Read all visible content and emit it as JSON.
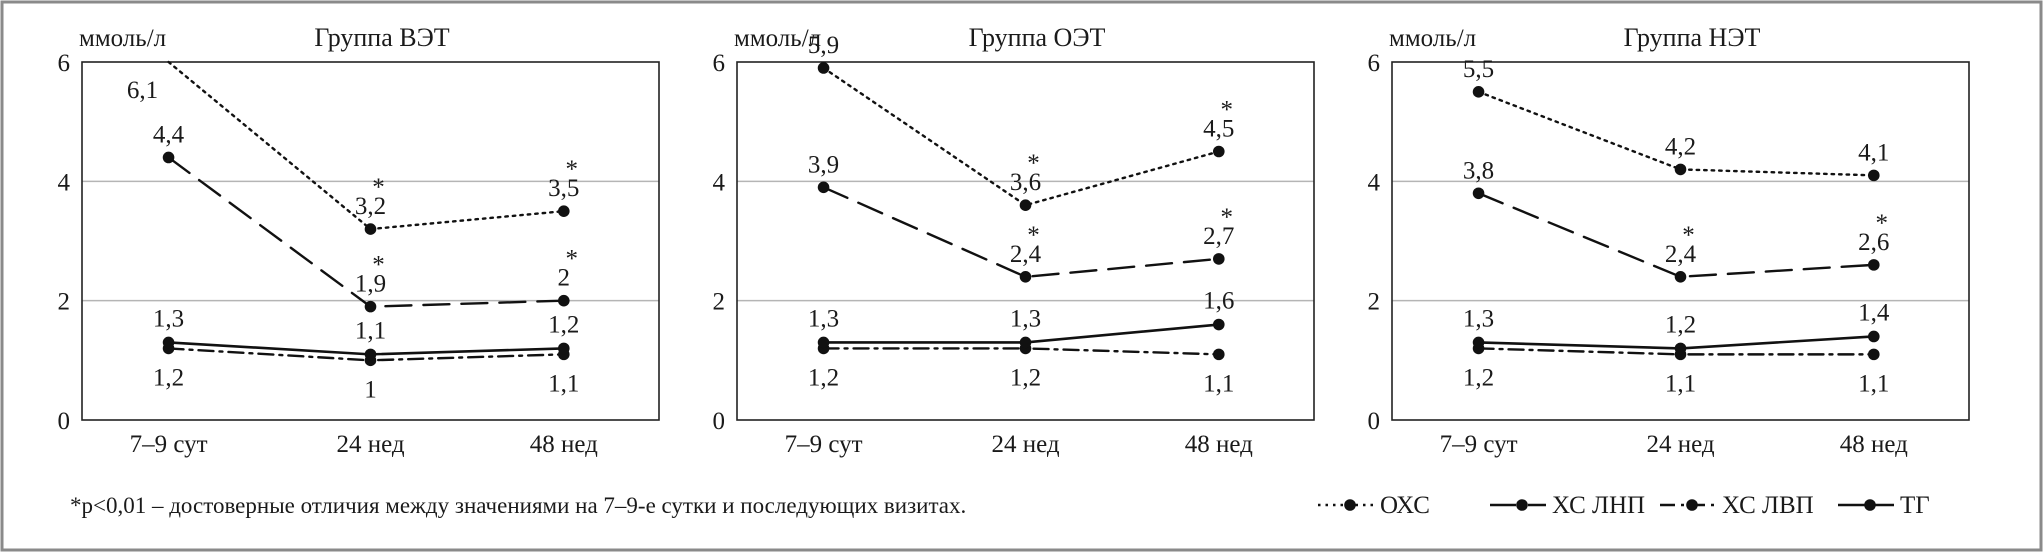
{
  "footnote": "*p<0,01 – достоверные отличия между значениями на 7–9-е сутки и последующих визитах.",
  "chart_data": [
    {
      "type": "line",
      "title": "Группа ВЭТ",
      "ylabel": "ммоль/л",
      "ylim": [
        0,
        6
      ],
      "yticks": [
        "0",
        "2",
        "4",
        "6"
      ],
      "categories": [
        "7–9 сут",
        "24 нед",
        "48 нед"
      ],
      "grid": true,
      "series": [
        {
          "name": "ОХС",
          "style": "dotted",
          "values": [
            6.1,
            3.2,
            3.5
          ],
          "labels": [
            "6,1",
            "3,2",
            "3,5"
          ],
          "significant": [
            false,
            true,
            true
          ]
        },
        {
          "name": "ХС ЛНП",
          "style": "dashed",
          "values": [
            4.4,
            1.9,
            2.0
          ],
          "labels": [
            "4,4",
            "1,9",
            "2"
          ],
          "significant": [
            false,
            true,
            true
          ]
        },
        {
          "name": "ХС ЛВП",
          "style": "dashdot",
          "values": [
            1.2,
            1.0,
            1.1
          ],
          "labels": [
            "1,2",
            "1",
            "1,1"
          ],
          "significant": [
            false,
            false,
            false
          ]
        },
        {
          "name": "ТГ",
          "style": "solid",
          "values": [
            1.3,
            1.1,
            1.2
          ],
          "labels": [
            "1,3",
            "1,1",
            "1,2"
          ],
          "significant": [
            false,
            false,
            false
          ]
        }
      ]
    },
    {
      "type": "line",
      "title": "Группа ОЭТ",
      "ylabel": "ммоль/л",
      "ylim": [
        0,
        6
      ],
      "yticks": [
        "0",
        "2",
        "4",
        "6"
      ],
      "categories": [
        "7–9 сут",
        "24 нед",
        "48 нед"
      ],
      "grid": true,
      "series": [
        {
          "name": "ОХС",
          "style": "dotted",
          "values": [
            5.9,
            3.6,
            4.5
          ],
          "labels": [
            "5,9",
            "3,6",
            "4,5"
          ],
          "significant": [
            false,
            true,
            true
          ]
        },
        {
          "name": "ХС ЛНП",
          "style": "dashed",
          "values": [
            3.9,
            2.4,
            2.7
          ],
          "labels": [
            "3,9",
            "2,4",
            "2,7"
          ],
          "significant": [
            false,
            true,
            true
          ]
        },
        {
          "name": "ХС ЛВП",
          "style": "dashdot",
          "values": [
            1.2,
            1.2,
            1.1
          ],
          "labels": [
            "1,2",
            "1,2",
            "1,1"
          ],
          "significant": [
            false,
            false,
            false
          ]
        },
        {
          "name": "ТГ",
          "style": "solid",
          "values": [
            1.3,
            1.3,
            1.6
          ],
          "labels": [
            "1,3",
            "1,3",
            "1,6"
          ],
          "significant": [
            false,
            false,
            false
          ]
        }
      ]
    },
    {
      "type": "line",
      "title": "Группа НЭТ",
      "ylabel": "ммоль/л",
      "ylim": [
        0,
        6
      ],
      "yticks": [
        "0",
        "2",
        "4",
        "6"
      ],
      "categories": [
        "7–9 сут",
        "24 нед",
        "48 нед"
      ],
      "grid": true,
      "series": [
        {
          "name": "ОХС",
          "style": "dotted",
          "values": [
            5.5,
            4.2,
            4.1
          ],
          "labels": [
            "5,5",
            "4,2",
            "4,1"
          ],
          "significant": [
            false,
            false,
            false
          ]
        },
        {
          "name": "ХС ЛНП",
          "style": "dashed",
          "values": [
            3.8,
            2.4,
            2.6
          ],
          "labels": [
            "3,8",
            "2,4",
            "2,6"
          ],
          "significant": [
            false,
            true,
            true
          ]
        },
        {
          "name": "ХС ЛВП",
          "style": "dashdot",
          "values": [
            1.2,
            1.1,
            1.1
          ],
          "labels": [
            "1,2",
            "1,1",
            "1,1"
          ],
          "significant": [
            false,
            false,
            false
          ]
        },
        {
          "name": "ТГ",
          "style": "solid",
          "values": [
            1.3,
            1.2,
            1.4
          ],
          "labels": [
            "1,3",
            "1,2",
            "1,4"
          ],
          "significant": [
            false,
            false,
            false
          ]
        }
      ]
    }
  ],
  "legend": [
    {
      "label": "ОХС",
      "style": "dotted"
    },
    {
      "label": "ХС ЛНП",
      "style": "dashed"
    },
    {
      "label": "ХС ЛВП",
      "style": "dashdot"
    },
    {
      "label": "ТГ",
      "style": "solid"
    }
  ]
}
